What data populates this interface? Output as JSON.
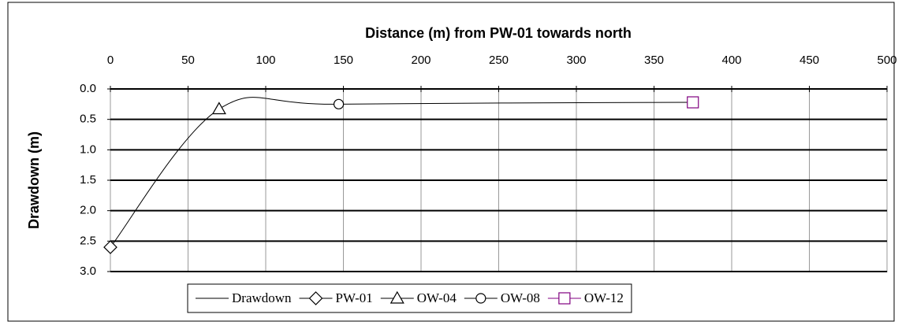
{
  "chart_data": {
    "type": "line",
    "title": "Distance (m) from PW-01 towards north",
    "y_label": "Drawdown (m)",
    "xlim": [
      0,
      500
    ],
    "xticks": [
      0,
      50,
      100,
      150,
      200,
      250,
      300,
      350,
      400,
      450,
      500
    ],
    "ylim": [
      0,
      3
    ],
    "y_inverted": true,
    "yticks": [
      {
        "value": 0,
        "label": "0.0"
      },
      0.5,
      {
        "value": 1,
        "label": "1.0"
      },
      1.5,
      {
        "value": 2,
        "label": "2.0"
      },
      2.5,
      {
        "value": 3,
        "label": "3.0"
      }
    ],
    "grid": true,
    "legend": "bottom",
    "series": [
      {
        "name": "Drawdown",
        "color": "#000000",
        "marker": "none",
        "smooth": true,
        "x": [
          0,
          70,
          147,
          375
        ],
        "values": [
          2.6,
          0.33,
          0.25,
          0.22
        ]
      },
      {
        "name": "PW-01",
        "color": "#000000",
        "marker": "diamond",
        "x": [
          0
        ],
        "values": [
          2.6
        ]
      },
      {
        "name": "OW-04",
        "color": "#000000",
        "marker": "triangle",
        "x": [
          70
        ],
        "values": [
          0.33
        ]
      },
      {
        "name": "OW-08",
        "color": "#000000",
        "marker": "circle",
        "x": [
          147
        ],
        "values": [
          0.25
        ]
      },
      {
        "name": "OW-12",
        "color": "#800080",
        "marker": "square",
        "x": [
          375
        ],
        "values": [
          0.22
        ]
      }
    ]
  }
}
